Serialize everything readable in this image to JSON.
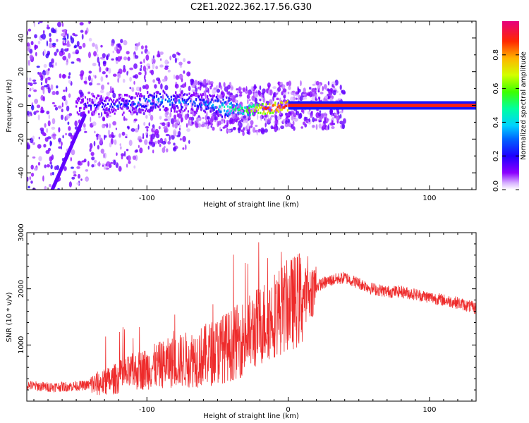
{
  "title": "C2E1.2022.362.17.56.G30",
  "colors": {
    "snr_line": "#ee2b2b",
    "colormap": [
      "#ffffff",
      "#e6c8ff",
      "#9a00ff",
      "#1400ff",
      "#00c8ff",
      "#00ff8c",
      "#64ff00",
      "#ffe600",
      "#ff3c00",
      "#e8007a"
    ]
  },
  "chart_data": [
    {
      "type": "heatmap",
      "xlabel": "Height of straight line (km)",
      "ylabel": "Frequency (Hz)",
      "xlim": [
        -185,
        133
      ],
      "ylim": [
        -50,
        50
      ],
      "xticks": [
        -100,
        0,
        100
      ],
      "yticks": [
        -40,
        -20,
        0,
        20,
        40
      ],
      "grid": false,
      "colorbar": {
        "label": "Normalized spectral amplitude",
        "range": [
          0.0,
          1.0
        ],
        "ticks": [
          "0.0",
          "0.2",
          "0.4",
          "0.6",
          "0.8"
        ]
      },
      "description_points": [
        {
          "x": -160,
          "y": 0,
          "v": 0.15
        },
        {
          "x": -120,
          "y": 0,
          "v": 0.25
        },
        {
          "x": -90,
          "y": 3,
          "v": 0.35
        },
        {
          "x": -60,
          "y": 1,
          "v": 0.3
        },
        {
          "x": -30,
          "y": -3,
          "v": 0.6
        },
        {
          "x": -15,
          "y": -2,
          "v": 0.9
        },
        {
          "x": 0,
          "y": 0,
          "v": 0.95
        },
        {
          "x": 50,
          "y": 0,
          "v": 1.0
        },
        {
          "x": 130,
          "y": 0,
          "v": 1.0
        }
      ]
    },
    {
      "type": "line",
      "xlabel": "Height of straight line (km)",
      "ylabel": "SNR (10 * v/v)",
      "xlim": [
        -185,
        133
      ],
      "ylim": [
        0,
        3000
      ],
      "xticks": [
        -100,
        0,
        100
      ],
      "yticks": [
        1000,
        2000,
        3000
      ],
      "grid": false,
      "series": [
        {
          "x": [
            -185,
            -170,
            -155,
            -140,
            -130,
            -120,
            -110,
            -100,
            -90,
            -80,
            -70,
            -60,
            -50,
            -40,
            -30,
            -20,
            -10,
            0,
            10,
            20,
            30,
            40,
            50,
            60,
            70,
            80,
            90,
            100,
            110,
            120,
            133
          ],
          "values": [
            280,
            250,
            260,
            290,
            330,
            420,
            520,
            580,
            650,
            700,
            750,
            800,
            900,
            1000,
            1150,
            1350,
            1550,
            1700,
            1850,
            2050,
            2150,
            2200,
            2100,
            2000,
            1950,
            1950,
            1900,
            1850,
            1800,
            1750,
            1650
          ]
        }
      ]
    }
  ]
}
